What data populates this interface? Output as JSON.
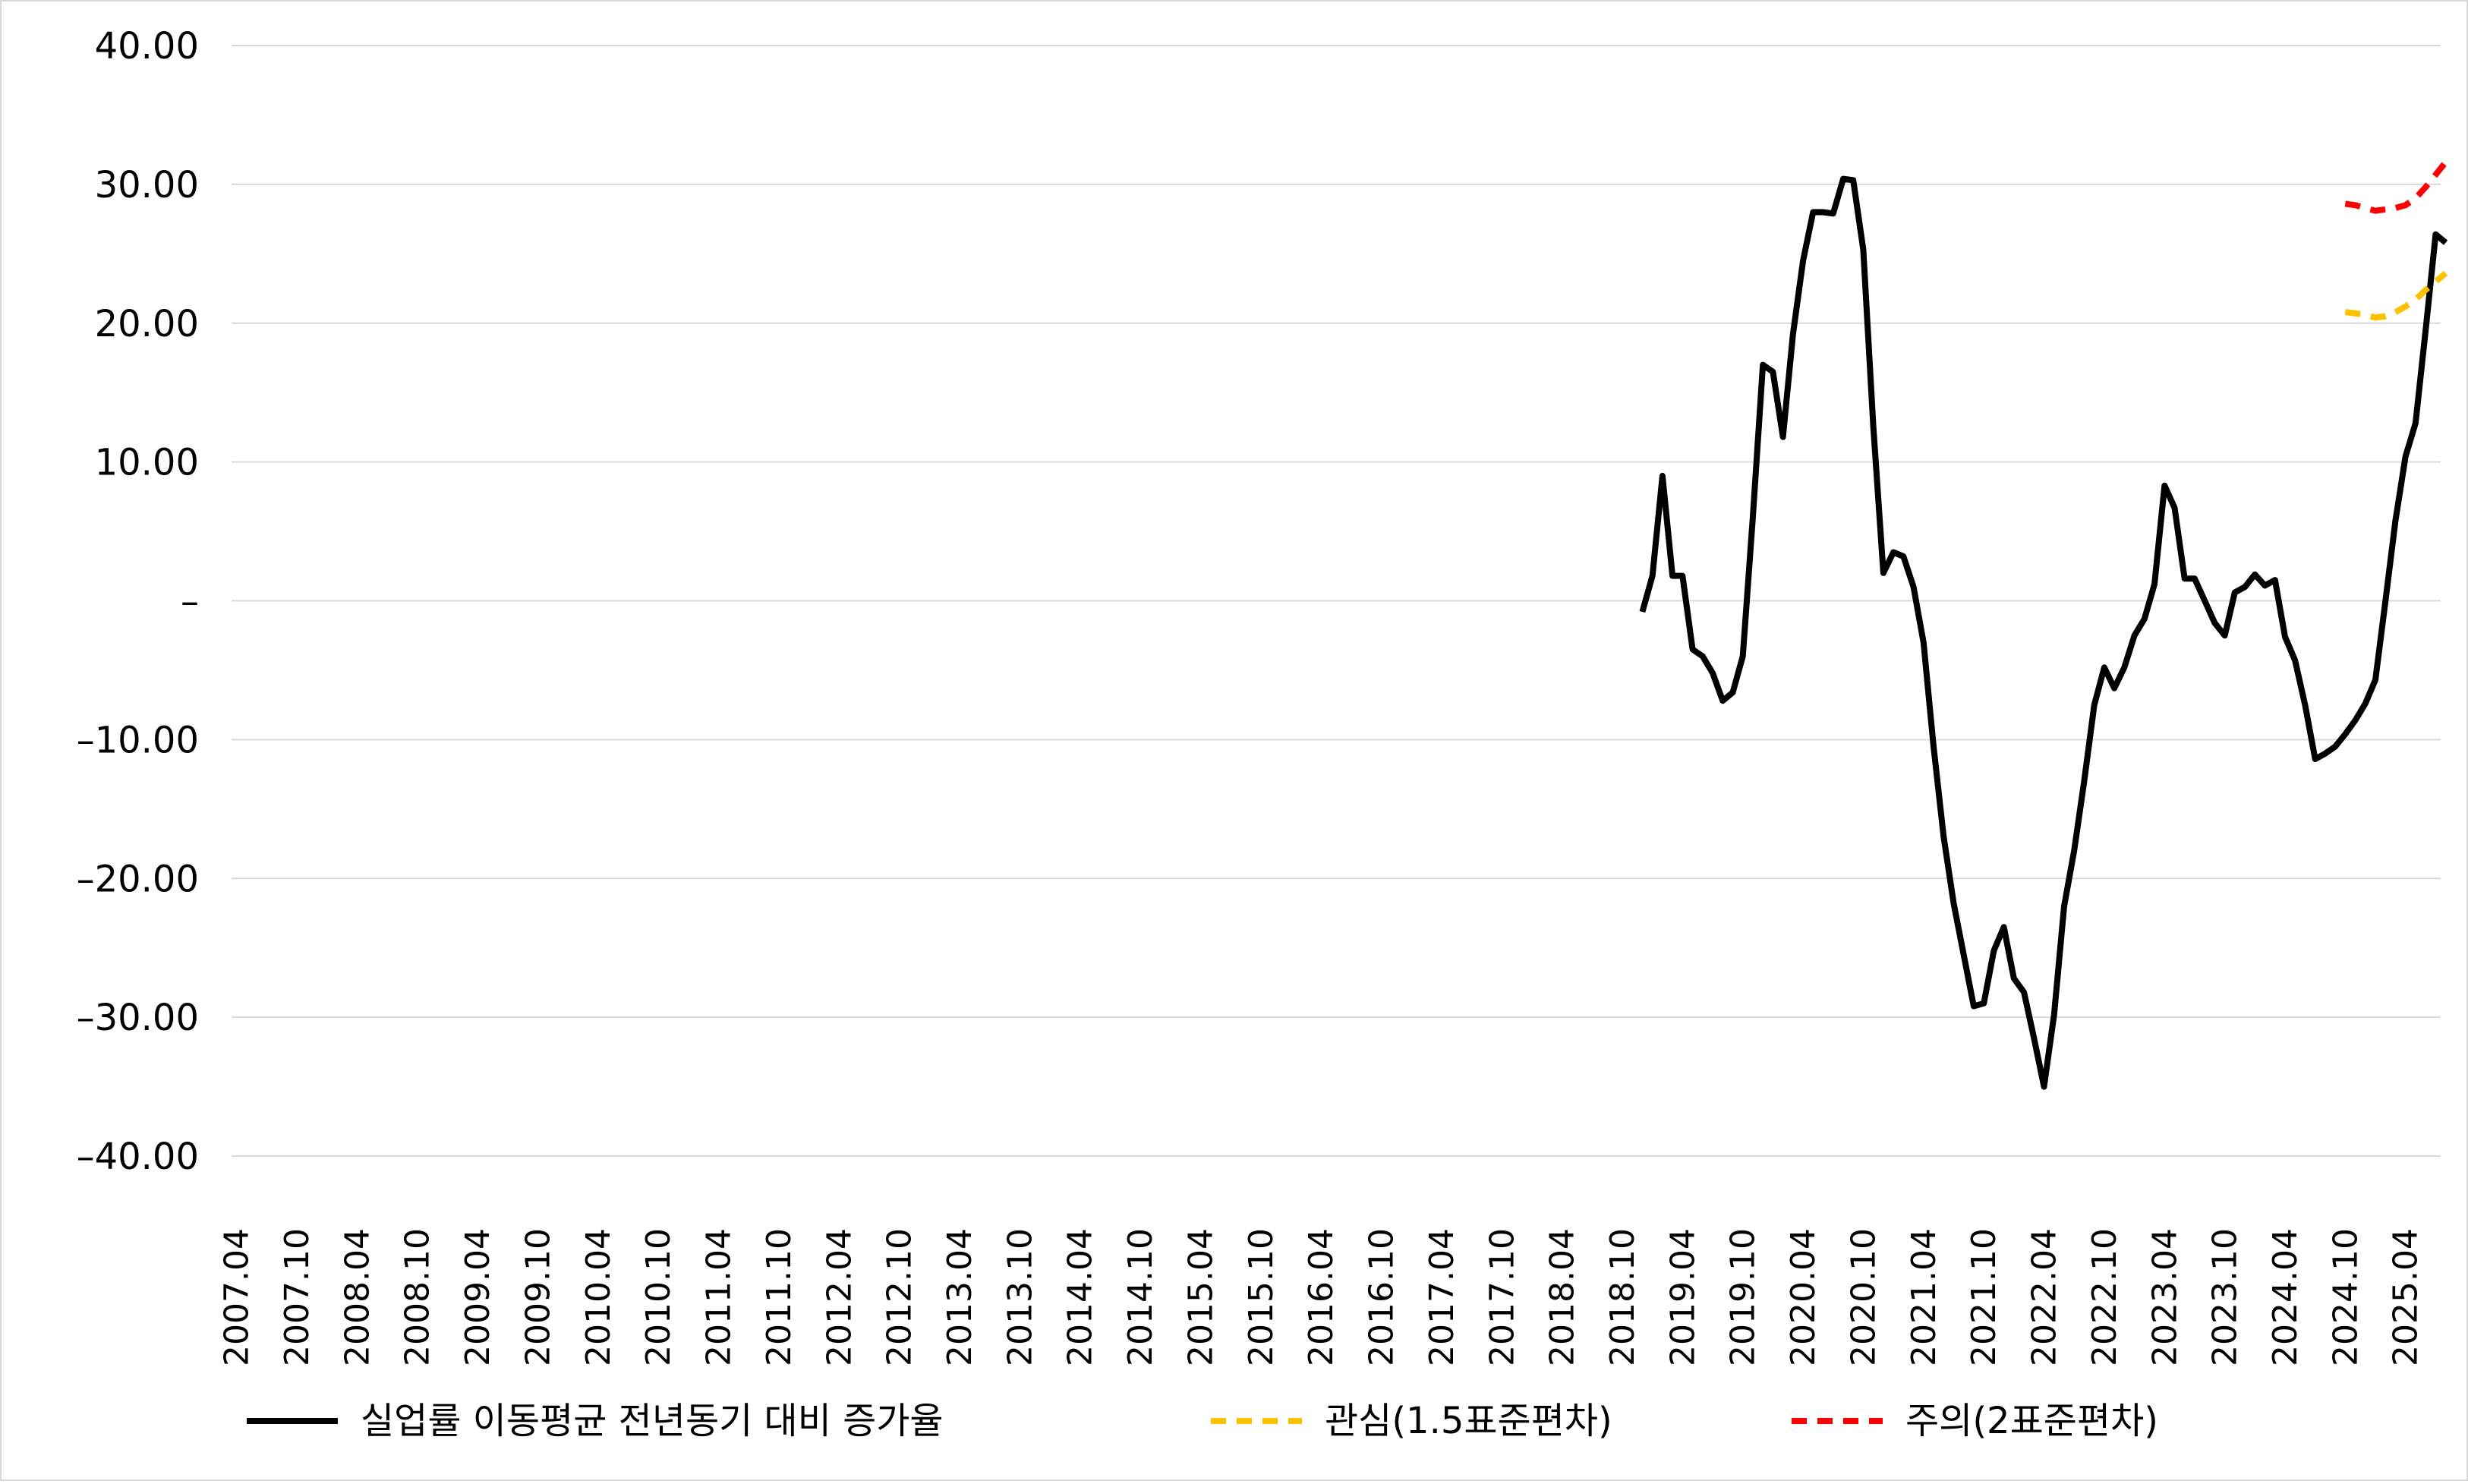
{
  "chart_data": {
    "type": "line",
    "title": "",
    "xlabel": "",
    "ylabel": "",
    "ylim": [
      -40,
      40
    ],
    "y_ticks": [
      40,
      30,
      20,
      10,
      0,
      -10,
      -20,
      -30,
      -40
    ],
    "y_tick_labels": [
      "40.00",
      "30.00",
      "20.00",
      "10.00",
      "–",
      "–10.00",
      "–20.00",
      "–30.00",
      "–40.00"
    ],
    "x_start": "2007.04",
    "x_end": "2025.07",
    "x_tick_labels": [
      "2007.04",
      "2007.10",
      "2008.04",
      "2008.10",
      "2009.04",
      "2009.10",
      "2010.04",
      "2010.10",
      "2011.04",
      "2011.10",
      "2012.04",
      "2012.10",
      "2013.04",
      "2013.10",
      "2014.04",
      "2014.10",
      "2015.04",
      "2015.10",
      "2016.04",
      "2016.10",
      "2017.04",
      "2017.10",
      "2018.04",
      "2018.10",
      "2019.04",
      "2019.10",
      "2020.04",
      "2020.10",
      "2021.04",
      "2021.10",
      "2022.04",
      "2022.10",
      "2023.04",
      "2023.10",
      "2024.04",
      "2024.10",
      "2025.04"
    ],
    "grid": true,
    "legend_position": "bottom",
    "series": [
      {
        "name": "실업률 이동평균 전년동기 대비 증가율",
        "color": "#000000",
        "style": "solid",
        "points": [
          [
            "2018.12",
            -0.8
          ],
          [
            "2019.01",
            1.8
          ],
          [
            "2019.02",
            9.0
          ],
          [
            "2019.03",
            1.8
          ],
          [
            "2019.04",
            1.8
          ],
          [
            "2019.05",
            -3.5
          ],
          [
            "2019.06",
            -4.0
          ],
          [
            "2019.07",
            -5.2
          ],
          [
            "2019.08",
            -7.2
          ],
          [
            "2019.09",
            -6.6
          ],
          [
            "2019.10",
            -4.0
          ],
          [
            "2019.11",
            6.0
          ],
          [
            "2019.12",
            17.0
          ],
          [
            "2020.01",
            16.5
          ],
          [
            "2020.02",
            11.8
          ],
          [
            "2020.03",
            19.2
          ],
          [
            "2020.04",
            24.5
          ],
          [
            "2020.05",
            28.0
          ],
          [
            "2020.06",
            28.0
          ],
          [
            "2020.07",
            27.9
          ],
          [
            "2020.08",
            30.4
          ],
          [
            "2020.09",
            30.3
          ],
          [
            "2020.10",
            25.3
          ],
          [
            "2020.11",
            12.5
          ],
          [
            "2020.12",
            2.0
          ],
          [
            "2021.01",
            3.5
          ],
          [
            "2021.02",
            3.2
          ],
          [
            "2021.03",
            1.0
          ],
          [
            "2021.04",
            -3.0
          ],
          [
            "2021.05",
            -10.5
          ],
          [
            "2021.06",
            -17.0
          ],
          [
            "2021.07",
            -21.8
          ],
          [
            "2021.08",
            -25.5
          ],
          [
            "2021.09",
            -29.2
          ],
          [
            "2021.10",
            -29.0
          ],
          [
            "2021.11",
            -25.2
          ],
          [
            "2021.12",
            -23.5
          ],
          [
            "2022.01",
            -27.2
          ],
          [
            "2022.02",
            -28.2
          ],
          [
            "2022.03",
            -31.5
          ],
          [
            "2022.04",
            -35.0
          ],
          [
            "2022.05",
            -29.8
          ],
          [
            "2022.06",
            -22.0
          ],
          [
            "2022.07",
            -18.0
          ],
          [
            "2022.08",
            -13.0
          ],
          [
            "2022.09",
            -7.5
          ],
          [
            "2022.10",
            -4.8
          ],
          [
            "2022.11",
            -6.3
          ],
          [
            "2022.12",
            -4.8
          ],
          [
            "2023.01",
            -2.5
          ],
          [
            "2023.02",
            -1.3
          ],
          [
            "2023.03",
            1.2
          ],
          [
            "2023.04",
            8.3
          ],
          [
            "2023.05",
            6.7
          ],
          [
            "2023.06",
            1.6
          ],
          [
            "2023.07",
            1.6
          ],
          [
            "2023.08",
            0.0
          ],
          [
            "2023.09",
            -1.6
          ],
          [
            "2023.10",
            -2.5
          ],
          [
            "2023.11",
            0.6
          ],
          [
            "2023.12",
            1.0
          ],
          [
            "2024.01",
            1.9
          ],
          [
            "2024.02",
            1.1
          ],
          [
            "2024.03",
            1.5
          ],
          [
            "2024.04",
            -2.6
          ],
          [
            "2024.05",
            -4.3
          ],
          [
            "2024.06",
            -7.5
          ],
          [
            "2024.07",
            -11.4
          ],
          [
            "2024.08",
            -11.0
          ],
          [
            "2024.09",
            -10.5
          ],
          [
            "2024.10",
            -9.6
          ],
          [
            "2024.11",
            -8.6
          ],
          [
            "2024.12",
            -7.4
          ],
          [
            "2025.01",
            -5.7
          ],
          [
            "2025.02",
            0.0
          ],
          [
            "2025.03",
            5.8
          ],
          [
            "2025.04",
            10.4
          ],
          [
            "2025.05",
            12.8
          ],
          [
            "2025.06",
            19.5
          ],
          [
            "2025.07",
            26.4
          ],
          [
            "2025.08",
            25.8
          ]
        ]
      },
      {
        "name": "관심(1.5표준편차)",
        "color": "#FFC000",
        "style": "dashed",
        "points": [
          [
            "2024.10",
            20.8
          ],
          [
            "2024.11",
            20.7
          ],
          [
            "2024.12",
            20.6
          ],
          [
            "2025.01",
            20.4
          ],
          [
            "2025.02",
            20.5
          ],
          [
            "2025.03",
            20.8
          ],
          [
            "2025.04",
            21.2
          ],
          [
            "2025.05",
            21.7
          ],
          [
            "2025.06",
            22.4
          ],
          [
            "2025.07",
            23.0
          ],
          [
            "2025.08",
            23.6
          ]
        ]
      },
      {
        "name": "주의(2표준편차)",
        "color": "#FF0000",
        "style": "dashed",
        "points": [
          [
            "2024.10",
            28.6
          ],
          [
            "2024.11",
            28.5
          ],
          [
            "2024.12",
            28.3
          ],
          [
            "2025.01",
            28.1
          ],
          [
            "2025.02",
            28.2
          ],
          [
            "2025.03",
            28.3
          ],
          [
            "2025.04",
            28.5
          ],
          [
            "2025.05",
            29.0
          ],
          [
            "2025.06",
            29.8
          ],
          [
            "2025.07",
            30.7
          ],
          [
            "2025.08",
            31.6
          ]
        ]
      }
    ]
  }
}
